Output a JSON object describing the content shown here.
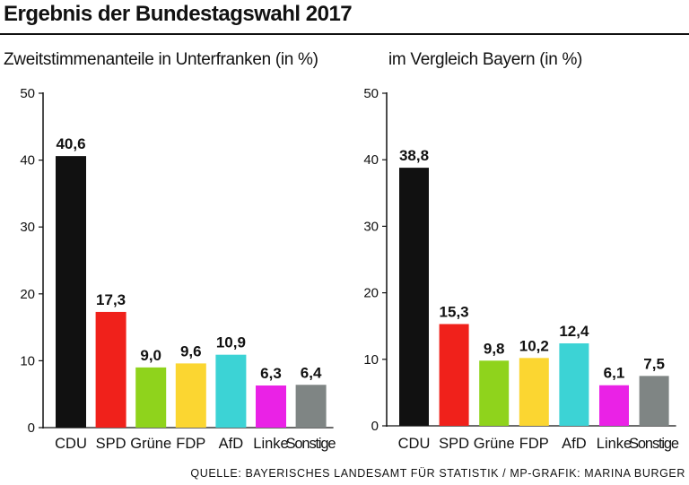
{
  "title": "Ergebnis der Bundestagswahl 2017",
  "source": "QUELLE: BAYERISCHES LANDESAMT FÜR STATISTIK / MP-GRAFIK: MARINA BURGER",
  "chart_data": [
    {
      "type": "bar",
      "title": "Zweitstimmenanteile in Unterfranken (in %)",
      "categories": [
        "CDU",
        "SPD",
        "Grüne",
        "FDP",
        "AfD",
        "Linke",
        "Sonstige"
      ],
      "values": [
        40.6,
        17.3,
        9.0,
        9.6,
        10.9,
        6.3,
        6.4
      ],
      "value_labels": [
        "40,6",
        "17,3",
        "9,0",
        "9,6",
        "10,9",
        "6,3",
        "6,4"
      ],
      "colors": [
        "#111111",
        "#f0211b",
        "#8fd31c",
        "#fbd631",
        "#3cd3d5",
        "#ea22e6",
        "#7f8584"
      ],
      "yticks": [
        0,
        10,
        20,
        30,
        40,
        50
      ],
      "ylim": [
        0,
        50
      ],
      "xlabel": "",
      "ylabel": ""
    },
    {
      "type": "bar",
      "title": "im Vergleich Bayern (in %)",
      "categories": [
        "CDU",
        "SPD",
        "Grüne",
        "FDP",
        "AfD",
        "Linke",
        "Sonstige"
      ],
      "values": [
        38.8,
        15.3,
        9.8,
        10.2,
        12.4,
        6.1,
        7.5
      ],
      "value_labels": [
        "38,8",
        "15,3",
        "9,8",
        "10,2",
        "12,4",
        "6,1",
        "7,5"
      ],
      "colors": [
        "#111111",
        "#f0211b",
        "#8fd31c",
        "#fbd631",
        "#3cd3d5",
        "#ea22e6",
        "#7f8584"
      ],
      "yticks": [
        0,
        10,
        20,
        30,
        40,
        50
      ],
      "ylim": [
        0,
        50
      ],
      "xlabel": "",
      "ylabel": ""
    }
  ]
}
